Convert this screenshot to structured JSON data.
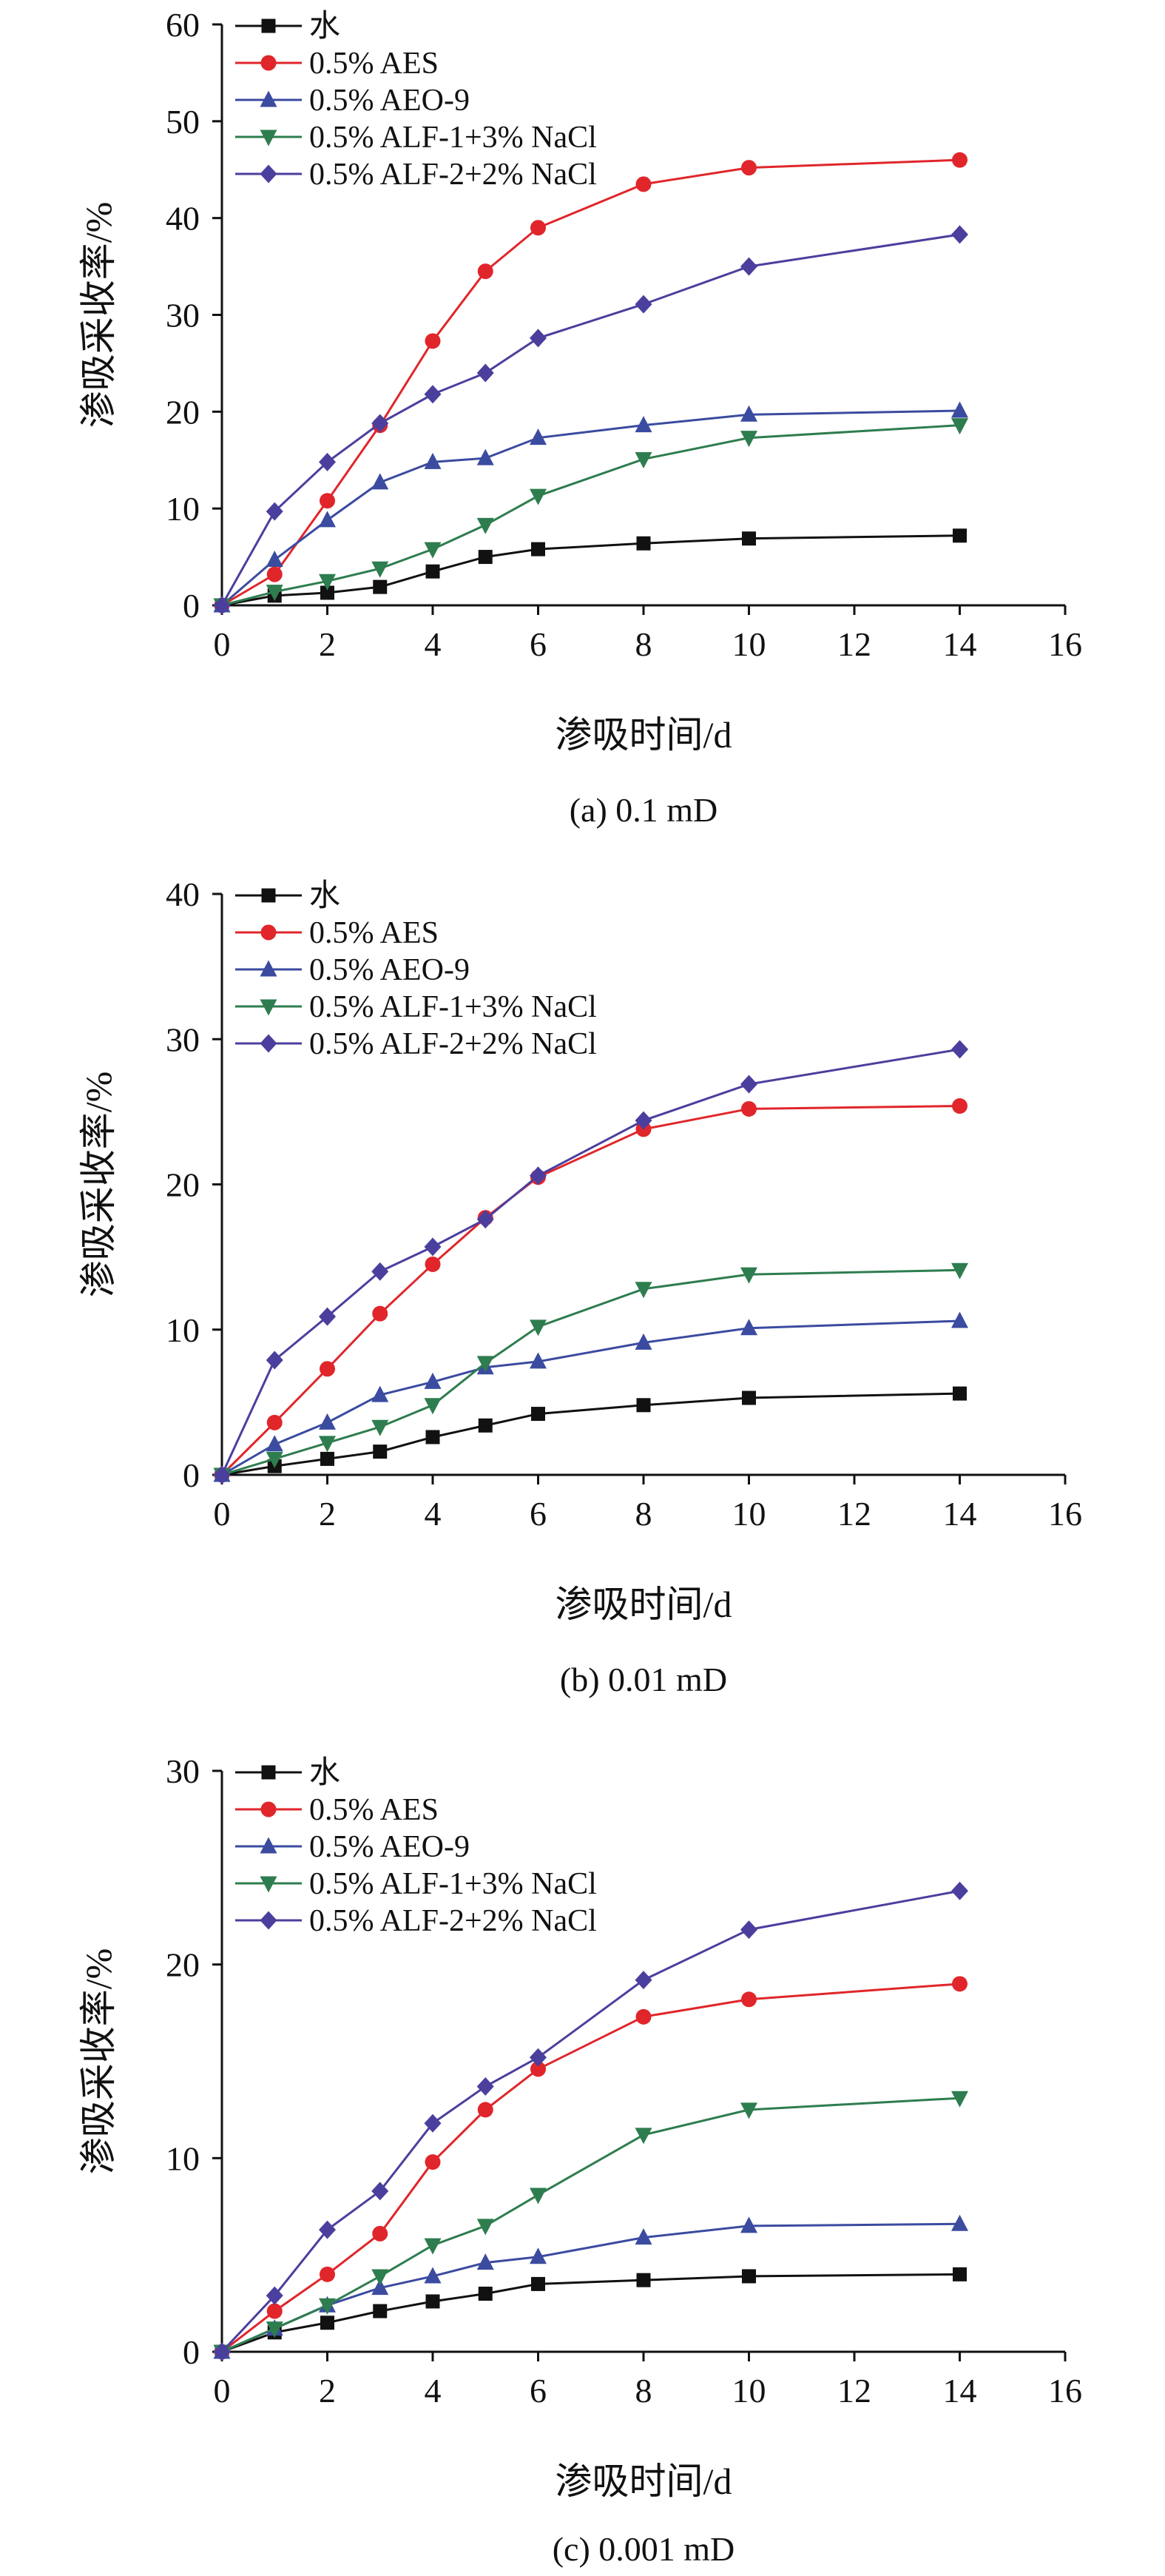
{
  "chart_data": [
    {
      "type": "line",
      "caption": "(a) 0.1 mD",
      "xlabel": "渗吸时间/d",
      "ylabel": "渗吸采收率/%",
      "xlim": [
        0,
        16
      ],
      "ylim": [
        0,
        60
      ],
      "xticks": [
        0,
        2,
        4,
        6,
        8,
        10,
        12,
        14,
        16
      ],
      "yticks": [
        0,
        10,
        20,
        30,
        40,
        50,
        60
      ],
      "legend_position": "top-left",
      "grid": false,
      "x": [
        0,
        1,
        2,
        3,
        4,
        5,
        6,
        8,
        10,
        14
      ],
      "series": [
        {
          "name": "水",
          "color": "#111111",
          "marker": "square",
          "values": [
            0,
            1.0,
            1.3,
            1.9,
            3.5,
            5.0,
            5.8,
            6.4,
            6.9,
            7.2
          ]
        },
        {
          "name": "0.5% AES",
          "color": "#e0262b",
          "marker": "circle",
          "values": [
            0,
            3.2,
            10.8,
            18.6,
            27.3,
            34.5,
            39.0,
            43.5,
            45.2,
            46.0
          ]
        },
        {
          "name": "0.5% AEO-9",
          "color": "#3b4ba0",
          "marker": "triangle-up",
          "values": [
            0,
            4.7,
            8.8,
            12.7,
            14.8,
            15.2,
            17.3,
            18.6,
            19.7,
            20.1
          ]
        },
        {
          "name": "0.5% ALF-1+3% NaCl",
          "color": "#2e7d4f",
          "marker": "triangle-down",
          "values": [
            0,
            1.4,
            2.5,
            3.8,
            5.8,
            8.3,
            11.3,
            15.1,
            17.3,
            18.6
          ]
        },
        {
          "name": "0.5% ALF-2+2% NaCl",
          "color": "#4b3f9e",
          "marker": "diamond",
          "values": [
            0,
            9.7,
            14.8,
            18.8,
            21.8,
            24.0,
            27.6,
            31.1,
            35.0,
            38.3
          ]
        }
      ]
    },
    {
      "type": "line",
      "caption": "(b)  0.01 mD",
      "xlabel": "渗吸时间/d",
      "ylabel": "渗吸采收率/%",
      "xlim": [
        0,
        16
      ],
      "ylim": [
        0,
        40
      ],
      "xticks": [
        0,
        2,
        4,
        6,
        8,
        10,
        12,
        14,
        16
      ],
      "yticks": [
        0,
        10,
        20,
        30,
        40
      ],
      "legend_position": "top-left",
      "grid": false,
      "x": [
        0,
        1,
        2,
        3,
        4,
        5,
        6,
        8,
        10,
        14
      ],
      "series": [
        {
          "name": "水",
          "color": "#111111",
          "marker": "square",
          "values": [
            0,
            0.6,
            1.1,
            1.6,
            2.6,
            3.4,
            4.2,
            4.8,
            5.3,
            5.6
          ]
        },
        {
          "name": "0.5% AES",
          "color": "#e0262b",
          "marker": "circle",
          "values": [
            0,
            3.6,
            7.3,
            11.1,
            14.5,
            17.7,
            20.5,
            23.8,
            25.2,
            25.4
          ]
        },
        {
          "name": "0.5% AEO-9",
          "color": "#3b4ba0",
          "marker": "triangle-up",
          "values": [
            0,
            2.1,
            3.6,
            5.5,
            6.4,
            7.4,
            7.8,
            9.1,
            10.1,
            10.6
          ]
        },
        {
          "name": "0.5% ALF-1+3% NaCl",
          "color": "#2e7d4f",
          "marker": "triangle-down",
          "values": [
            0,
            1.1,
            2.2,
            3.3,
            4.8,
            7.7,
            10.2,
            12.8,
            13.8,
            14.1
          ]
        },
        {
          "name": "0.5% ALF-2+2% NaCl",
          "color": "#4b3f9e",
          "marker": "diamond",
          "values": [
            0,
            7.9,
            10.9,
            14.0,
            15.7,
            17.6,
            20.6,
            24.4,
            26.9,
            29.3
          ]
        }
      ]
    },
    {
      "type": "line",
      "caption": "(c) 0.001 mD",
      "xlabel": "渗吸时间/d",
      "ylabel": "渗吸采收率/%",
      "xlim": [
        0,
        16
      ],
      "ylim": [
        0,
        30
      ],
      "xticks": [
        0,
        2,
        4,
        6,
        8,
        10,
        12,
        14,
        16
      ],
      "yticks": [
        0,
        10,
        20,
        30
      ],
      "legend_position": "top-left",
      "grid": false,
      "x": [
        0,
        1,
        2,
        3,
        4,
        5,
        6,
        8,
        10,
        14
      ],
      "series": [
        {
          "name": "水",
          "color": "#111111",
          "marker": "square",
          "values": [
            0,
            1.0,
            1.5,
            2.1,
            2.6,
            3.0,
            3.5,
            3.7,
            3.9,
            4.0
          ]
        },
        {
          "name": "0.5% AES",
          "color": "#e0262b",
          "marker": "circle",
          "values": [
            0,
            2.1,
            4.0,
            6.1,
            9.8,
            12.5,
            14.6,
            17.3,
            18.2,
            19.0
          ]
        },
        {
          "name": "0.5% AEO-9",
          "color": "#3b4ba0",
          "marker": "triangle-up",
          "values": [
            0,
            1.2,
            2.4,
            3.3,
            3.9,
            4.6,
            4.9,
            5.9,
            6.5,
            6.6
          ]
        },
        {
          "name": "0.5% ALF-1+3% NaCl",
          "color": "#2e7d4f",
          "marker": "triangle-down",
          "values": [
            0,
            1.2,
            2.4,
            3.9,
            5.5,
            6.5,
            8.1,
            11.2,
            12.5,
            13.1
          ]
        },
        {
          "name": "0.5% ALF-2+2% NaCl",
          "color": "#4b3f9e",
          "marker": "diamond",
          "values": [
            0,
            2.9,
            6.3,
            8.3,
            11.8,
            13.7,
            15.2,
            19.2,
            21.8,
            23.8
          ]
        }
      ]
    }
  ]
}
